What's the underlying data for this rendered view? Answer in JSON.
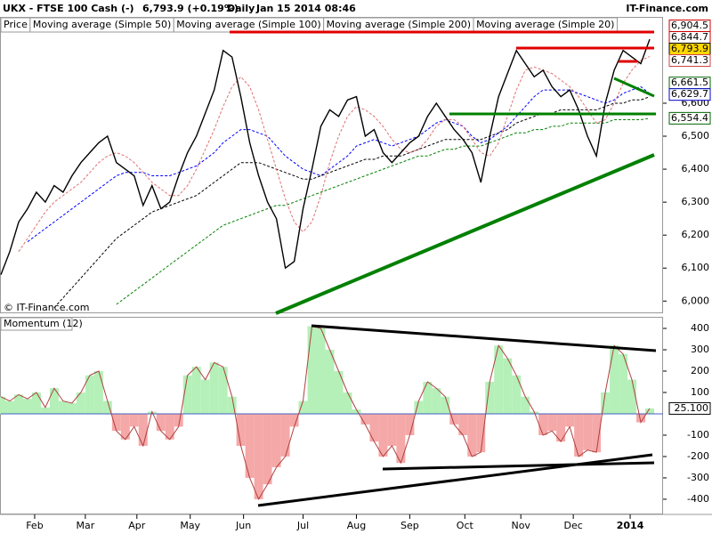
{
  "header": {
    "symbol": "UKX - FTSE 100 Cash (-)",
    "quote": "6,793.9 (+0.19%)",
    "interval": "Daily",
    "timestamp": "Jan 15 2014 08:46",
    "source": "IT-Finance.com",
    "watermark": "© IT-Finance.com"
  },
  "chart_data": [
    {
      "type": "line",
      "title": "UKX - FTSE 100 Cash (-)",
      "xlim": [
        0,
        74.5
      ],
      "ylim": [
        5963,
        6859
      ],
      "yticks": [
        {
          "value": 6000,
          "label": "6,000"
        },
        {
          "value": 6100,
          "label": "6,100"
        },
        {
          "value": 6200,
          "label": "6,200"
        },
        {
          "value": 6300,
          "label": "6,300"
        },
        {
          "value": 6400,
          "label": "6,400"
        },
        {
          "value": 6500,
          "label": "6,500"
        },
        {
          "value": 6600,
          "label": "6,600"
        }
      ],
      "series": [
        {
          "name": "Price",
          "color": "#000000",
          "dashed": false,
          "values": [
            6080,
            6150,
            6240,
            6280,
            6330,
            6300,
            6350,
            6330,
            6380,
            6420,
            6450,
            6480,
            6500,
            6420,
            6400,
            6380,
            6290,
            6350,
            6280,
            6300,
            6380,
            6450,
            6500,
            6570,
            6640,
            6760,
            6740,
            6620,
            6480,
            6380,
            6300,
            6250,
            6100,
            6120,
            6280,
            6400,
            6530,
            6580,
            6560,
            6610,
            6620,
            6500,
            6520,
            6450,
            6420,
            6450,
            6480,
            6500,
            6560,
            6600,
            6560,
            6520,
            6490,
            6450,
            6360,
            6500,
            6620,
            6690,
            6760,
            6720,
            6680,
            6700,
            6650,
            6620,
            6640,
            6580,
            6500,
            6440,
            6600,
            6700,
            6760,
            6740,
            6720,
            6793.9
          ]
        },
        {
          "name": "Moving average (Simple 50)",
          "color": "#0000ff",
          "dashed": true,
          "values": [
            null,
            null,
            null,
            6180,
            6200,
            6220,
            6240,
            6260,
            6280,
            6300,
            6320,
            6340,
            6360,
            6380,
            6390,
            6390,
            6390,
            6380,
            6380,
            6380,
            6390,
            6400,
            6410,
            6430,
            6450,
            6480,
            6500,
            6520,
            6520,
            6510,
            6500,
            6470,
            6440,
            6420,
            6400,
            6390,
            6380,
            6400,
            6420,
            6440,
            6470,
            6480,
            6490,
            6480,
            6470,
            6480,
            6490,
            6500,
            6520,
            6540,
            6550,
            6540,
            6530,
            6500,
            6480,
            6490,
            6510,
            6530,
            6560,
            6590,
            6620,
            6640,
            6640,
            6640,
            6640,
            6630,
            6620,
            6610,
            6600,
            6610,
            6630,
            6640,
            6650,
            6629.7
          ]
        },
        {
          "name": "Moving average (Simple 100)",
          "color": "#000000",
          "dashed": true,
          "values": [
            null,
            null,
            null,
            null,
            null,
            null,
            5980,
            6010,
            6040,
            6070,
            6100,
            6130,
            6160,
            6190,
            6210,
            6230,
            6250,
            6270,
            6280,
            6290,
            6300,
            6310,
            6320,
            6340,
            6360,
            6380,
            6400,
            6420,
            6420,
            6420,
            6410,
            6400,
            6390,
            6380,
            6370,
            6370,
            6380,
            6390,
            6400,
            6410,
            6420,
            6430,
            6430,
            6440,
            6440,
            6440,
            6450,
            6460,
            6470,
            6480,
            6490,
            6490,
            6490,
            6490,
            6490,
            6500,
            6510,
            6520,
            6540,
            6550,
            6560,
            6570,
            6570,
            6580,
            6580,
            6580,
            6580,
            6580,
            6590,
            6600,
            6600,
            6610,
            6610,
            6620
          ]
        },
        {
          "name": "Moving average (Simple 200)",
          "color": "#008000",
          "dashed": true,
          "values": [
            null,
            null,
            null,
            null,
            null,
            null,
            null,
            null,
            null,
            null,
            null,
            null,
            null,
            5990,
            6010,
            6030,
            6050,
            6070,
            6090,
            6110,
            6130,
            6150,
            6170,
            6190,
            6210,
            6230,
            6240,
            6250,
            6260,
            6270,
            6280,
            6290,
            6290,
            6300,
            6310,
            6320,
            6330,
            6340,
            6350,
            6360,
            6370,
            6380,
            6390,
            6400,
            6410,
            6420,
            6430,
            6440,
            6440,
            6450,
            6460,
            6460,
            6470,
            6470,
            6470,
            6480,
            6490,
            6500,
            6510,
            6510,
            6520,
            6520,
            6530,
            6530,
            6540,
            6540,
            6540,
            6540,
            6540,
            6550,
            6550,
            6550,
            6550,
            6554.4
          ]
        },
        {
          "name": "Moving average (Simple 20)",
          "color": "#e07070",
          "dashed": true,
          "values": [
            null,
            null,
            6150,
            6190,
            6230,
            6270,
            6300,
            6320,
            6340,
            6360,
            6390,
            6420,
            6440,
            6450,
            6440,
            6420,
            6390,
            6360,
            6340,
            6320,
            6320,
            6350,
            6400,
            6460,
            6520,
            6590,
            6650,
            6680,
            6650,
            6580,
            6490,
            6400,
            6310,
            6240,
            6210,
            6240,
            6320,
            6420,
            6500,
            6560,
            6590,
            6580,
            6560,
            6530,
            6490,
            6460,
            6450,
            6460,
            6490,
            6530,
            6550,
            6550,
            6530,
            6490,
            6450,
            6440,
            6480,
            6560,
            6640,
            6700,
            6710,
            6700,
            6690,
            6670,
            6650,
            6620,
            6580,
            6540,
            6550,
            6600,
            6660,
            6700,
            6730,
            6741.3
          ]
        }
      ],
      "price_labels": [
        {
          "value": 6904.5,
          "label": "6,904.5",
          "color": "#cc0000",
          "background": "#ffffff"
        },
        {
          "value": 6844.7,
          "label": "6,844.7",
          "color": "#cc0000",
          "background": "#ffffff"
        },
        {
          "value": 6793.9,
          "label": "6,793.9",
          "color": "#000000",
          "background": "#ffd700"
        },
        {
          "value": 6741.3,
          "label": "6,741.3",
          "color": "#cc4444",
          "background": "#ffffff"
        },
        {
          "value": 6661.5,
          "label": "6,661.5",
          "color": "#006600",
          "background": "#ffffff"
        },
        {
          "value": 6629.7,
          "label": "6,629.7",
          "color": "#0000cc",
          "background": "#ffffff"
        },
        {
          "value": 6554.4,
          "label": "6,554.4",
          "color": "#006600",
          "background": "#ffffff"
        }
      ]
    },
    {
      "type": "area",
      "title": "Momentum (12)",
      "xlim": [
        0,
        74.5
      ],
      "ylim": [
        -467,
        450
      ],
      "yticks": [
        400,
        300,
        200,
        100,
        -100,
        -200,
        -300,
        -400
      ],
      "xticks": [
        {
          "value": 3.8,
          "label": "Feb"
        },
        {
          "value": 9.5,
          "label": "Mar"
        },
        {
          "value": 15.3,
          "label": "Apr"
        },
        {
          "value": 21.3,
          "label": "May"
        },
        {
          "value": 27.3,
          "label": "Jun"
        },
        {
          "value": 34,
          "label": "Jul"
        },
        {
          "value": 40,
          "label": "Aug"
        },
        {
          "value": 46,
          "label": "Sep"
        },
        {
          "value": 52.2,
          "label": "Oct"
        },
        {
          "value": 58.5,
          "label": "Nov"
        },
        {
          "value": 64.4,
          "label": "Dec"
        },
        {
          "value": 70.8,
          "label": "2014"
        }
      ],
      "color": "#b04040",
      "positive_color": "#b4f0b8",
      "negative_color": "#f5a8a8",
      "values": [
        80,
        60,
        90,
        70,
        100,
        30,
        120,
        60,
        50,
        100,
        180,
        200,
        60,
        -80,
        -120,
        -60,
        -150,
        10,
        -80,
        -120,
        -60,
        180,
        220,
        160,
        240,
        220,
        80,
        -150,
        -300,
        -400,
        -330,
        -250,
        -200,
        -60,
        60,
        410,
        400,
        300,
        200,
        100,
        20,
        -50,
        -130,
        -200,
        -150,
        -230,
        -100,
        60,
        150,
        120,
        80,
        -50,
        -100,
        -200,
        -180,
        150,
        320,
        260,
        180,
        80,
        10,
        -100,
        -80,
        -130,
        -60,
        -200,
        -170,
        -180,
        100,
        320,
        280,
        160,
        -40,
        25.1
      ],
      "last_label": {
        "value": 25.1,
        "label": "25.100"
      }
    }
  ]
}
